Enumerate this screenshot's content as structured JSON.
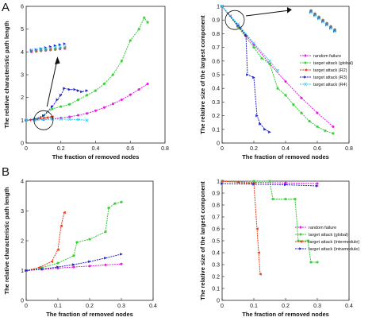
{
  "figure": {
    "panel_a": "A",
    "panel_b": "B"
  },
  "chart_data": [
    {
      "id": "a1",
      "type": "line",
      "title": "",
      "xlabel": "The fraction of removed nodes",
      "ylabel": "The relative characteristic path length",
      "xlim": [
        0,
        0.8
      ],
      "ylim": [
        0,
        6
      ],
      "xticks": [
        "0",
        "0.2",
        "0.4",
        "0.6",
        "0.8"
      ],
      "yticks": [
        "0",
        "1",
        "2",
        "3",
        "4",
        "5",
        "6"
      ],
      "series": [
        {
          "color": "#e020e0",
          "marker": "circle",
          "x": [
            0,
            0.05,
            0.1,
            0.15,
            0.2,
            0.25,
            0.3,
            0.35,
            0.4,
            0.45,
            0.5,
            0.55,
            0.6,
            0.65,
            0.7
          ],
          "y": [
            1,
            1.01,
            1.03,
            1.06,
            1.1,
            1.15,
            1.22,
            1.3,
            1.42,
            1.56,
            1.72,
            1.9,
            2.12,
            2.35,
            2.6
          ]
        },
        {
          "color": "#33cc33",
          "marker": "star",
          "x": [
            0,
            0.05,
            0.1,
            0.15,
            0.2,
            0.25,
            0.3,
            0.35,
            0.4,
            0.45,
            0.5,
            0.55,
            0.6,
            0.65,
            0.68,
            0.7
          ],
          "y": [
            1,
            1.05,
            1.2,
            1.5,
            1.6,
            1.7,
            1.9,
            2.1,
            2.3,
            2.6,
            3.0,
            3.6,
            4.5,
            5.0,
            5.5,
            5.3
          ]
        },
        {
          "color": "#ee3311",
          "marker": "triangle-left",
          "x": [
            0,
            0.02,
            0.04,
            0.06,
            0.08,
            0.1,
            0.12,
            0.14,
            0.15
          ],
          "y": [
            1,
            1.01,
            1.03,
            1.05,
            1.08,
            1.1,
            1.12,
            1.14,
            1.15
          ]
        },
        {
          "color": "#2222cc",
          "marker": "triangle-right",
          "x": [
            0,
            0.05,
            0.1,
            0.15,
            0.18,
            0.2,
            0.22,
            0.25,
            0.28,
            0.3,
            0.32,
            0.35
          ],
          "y": [
            1,
            1.05,
            1.2,
            1.6,
            1.9,
            2.1,
            2.4,
            2.35,
            2.35,
            2.3,
            2.25,
            2.3
          ]
        },
        {
          "color": "#33ccee",
          "marker": "cross",
          "x": [
            0,
            0.05,
            0.1,
            0.15,
            0.2,
            0.25,
            0.3,
            0.35
          ],
          "y": [
            1,
            1.01,
            1.03,
            1.05,
            1.05,
            1.04,
            1.03,
            1.0
          ]
        }
      ]
    },
    {
      "id": "a2",
      "type": "line",
      "title": "",
      "xlabel": "The fraction of removed nodes",
      "ylabel": "The relative size of the largest component",
      "xlim": [
        0,
        0.8
      ],
      "ylim": [
        0,
        1
      ],
      "xticks": [
        "0",
        "0.2",
        "0.4",
        "0.6",
        "0.8"
      ],
      "yticks": [
        "0",
        "0.1",
        "0.2",
        "0.3",
        "0.4",
        "0.5",
        "0.6",
        "0.7",
        "0.8",
        "0.9",
        "1"
      ],
      "legend": [
        "random failure",
        "target attack (global)",
        "target attack  (R2)",
        "target attack (R3)",
        "target attack  (R4)"
      ],
      "series": [
        {
          "color": "#e020e0",
          "marker": "circle",
          "x": [
            0,
            0.1,
            0.2,
            0.3,
            0.4,
            0.5,
            0.6,
            0.7
          ],
          "y": [
            1,
            0.86,
            0.72,
            0.58,
            0.45,
            0.33,
            0.22,
            0.12
          ]
        },
        {
          "color": "#33cc33",
          "marker": "star",
          "x": [
            0,
            0.1,
            0.2,
            0.25,
            0.3,
            0.35,
            0.4,
            0.45,
            0.5,
            0.55,
            0.6,
            0.65,
            0.7
          ],
          "y": [
            1,
            0.85,
            0.7,
            0.62,
            0.58,
            0.4,
            0.35,
            0.28,
            0.22,
            0.16,
            0.12,
            0.09,
            0.07
          ]
        },
        {
          "color": "#ee3311",
          "marker": "triangle-left",
          "x": [
            0,
            0.05,
            0.1,
            0.15
          ],
          "y": [
            1,
            0.93,
            0.86,
            0.78
          ]
        },
        {
          "color": "#2222cc",
          "marker": "triangle-right",
          "x": [
            0,
            0.1,
            0.15,
            0.16,
            0.2,
            0.22,
            0.24,
            0.27,
            0.3
          ],
          "y": [
            1,
            0.86,
            0.79,
            0.5,
            0.48,
            0.2,
            0.14,
            0.1,
            0.08
          ]
        },
        {
          "color": "#33ccee",
          "marker": "cross",
          "x": [
            0,
            0.1,
            0.2,
            0.3,
            0.35
          ],
          "y": [
            1,
            0.87,
            0.73,
            0.6,
            0.53
          ]
        }
      ]
    },
    {
      "id": "b1",
      "type": "line",
      "title": "",
      "xlabel": "The fraction of removed nodes",
      "ylabel": "The relative characteristic path length",
      "xlim": [
        0,
        0.4
      ],
      "ylim": [
        0,
        4
      ],
      "xticks": [
        "0",
        "0.1",
        "0.2",
        "0.3",
        "0.4"
      ],
      "yticks": [
        "0",
        "1",
        "2",
        "3",
        "4"
      ],
      "series": [
        {
          "color": "#e020e0",
          "marker": "circle",
          "x": [
            0,
            0.05,
            0.1,
            0.15,
            0.2,
            0.25,
            0.3
          ],
          "y": [
            1,
            1.04,
            1.08,
            1.12,
            1.15,
            1.19,
            1.22
          ]
        },
        {
          "color": "#33cc33",
          "marker": "star",
          "x": [
            0,
            0.05,
            0.1,
            0.15,
            0.16,
            0.2,
            0.25,
            0.26,
            0.28,
            0.3
          ],
          "y": [
            1,
            1.1,
            1.25,
            1.5,
            1.95,
            2.05,
            2.3,
            3.1,
            3.25,
            3.3
          ]
        },
        {
          "color": "#ee3311",
          "marker": "triangle-left",
          "x": [
            0,
            0.04,
            0.08,
            0.1,
            0.11,
            0.12
          ],
          "y": [
            1,
            1.1,
            1.3,
            1.7,
            2.5,
            2.95
          ]
        },
        {
          "color": "#2222cc",
          "marker": "triangle-right",
          "x": [
            0,
            0.05,
            0.1,
            0.15,
            0.2,
            0.25,
            0.3
          ],
          "y": [
            1,
            1.05,
            1.12,
            1.2,
            1.3,
            1.42,
            1.55
          ]
        }
      ]
    },
    {
      "id": "b2",
      "type": "line",
      "title": "",
      "xlabel": "The fraction of removed nodes",
      "ylabel": "The relative size of the largest component",
      "xlim": [
        0,
        0.4
      ],
      "ylim": [
        0,
        1
      ],
      "xticks": [
        "0",
        "0.1",
        "0.2",
        "0.3",
        "0.4"
      ],
      "yticks": [
        "0",
        "0.1",
        "0.2",
        "0.3",
        "0.4",
        "0.5",
        "0.6",
        "0.7",
        "0.8",
        "0.9",
        "1"
      ],
      "legend": [
        "random failure",
        "target attack (global)",
        "target attack (intermodule)",
        "target attack (intramodule)"
      ],
      "series": [
        {
          "color": "#e020e0",
          "marker": "circle",
          "x": [
            0,
            0.1,
            0.2,
            0.3
          ],
          "y": [
            1,
            0.99,
            0.985,
            0.98
          ]
        },
        {
          "color": "#33cc33",
          "marker": "star",
          "x": [
            0,
            0.1,
            0.15,
            0.16,
            0.2,
            0.23,
            0.24,
            0.27,
            0.28,
            0.3
          ],
          "y": [
            1,
            1,
            1,
            0.85,
            0.85,
            0.85,
            0.5,
            0.5,
            0.32,
            0.32
          ]
        },
        {
          "color": "#ee3311",
          "marker": "triangle-left",
          "x": [
            0,
            0.05,
            0.1,
            0.11,
            0.115,
            0.12
          ],
          "y": [
            1,
            0.99,
            0.98,
            0.6,
            0.4,
            0.22
          ]
        },
        {
          "color": "#2222cc",
          "marker": "triangle-right",
          "x": [
            0,
            0.1,
            0.2,
            0.3
          ],
          "y": [
            0.98,
            0.975,
            0.97,
            0.96
          ]
        }
      ]
    }
  ]
}
